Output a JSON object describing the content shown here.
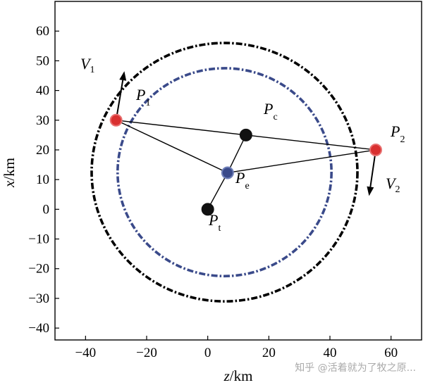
{
  "axes": {
    "xlabel_var": "z",
    "xlabel_unit": "/km",
    "ylabel_var": "x",
    "ylabel_unit": "/km",
    "xlim": [
      -50,
      70
    ],
    "ylim": [
      -44,
      70
    ],
    "xticks": [
      -40,
      -20,
      0,
      20,
      40,
      60
    ],
    "yticks": [
      -40,
      -30,
      -20,
      -10,
      0,
      10,
      20,
      30,
      40,
      50,
      60
    ],
    "xtick_labels": [
      "−40",
      "−20",
      "0",
      "20",
      "40",
      "60"
    ],
    "ytick_labels": [
      "−40",
      "−30",
      "−20",
      "−10",
      "0",
      "10",
      "20",
      "30",
      "40",
      "50",
      "60"
    ]
  },
  "circles": [
    {
      "name": "outer-circle",
      "cx": 5.5,
      "cy": 12.5,
      "r": 43.5,
      "color": "#000000",
      "dash": "dash-dot"
    },
    {
      "name": "inner-circle",
      "cx": 5.5,
      "cy": 12.5,
      "r": 35,
      "color": "#3a4a8a",
      "dash": "dash-dot"
    }
  ],
  "points": [
    {
      "id": "P1",
      "main": "P",
      "sub": "1",
      "z": -30,
      "x": 30,
      "color": "#d93030",
      "ring": "#e87070"
    },
    {
      "id": "P2",
      "main": "P",
      "sub": "2",
      "z": 55,
      "x": 20,
      "color": "#d93030",
      "ring": "#e87070"
    },
    {
      "id": "Pc",
      "main": "P",
      "sub": "c",
      "z": 12.5,
      "x": 25,
      "color": "#111111",
      "ring": "#111111"
    },
    {
      "id": "Pe",
      "main": "P",
      "sub": "e",
      "z": 6.5,
      "x": 12.3,
      "color": "#3a4a8a",
      "ring": "#6f7fb8"
    },
    {
      "id": "Pt",
      "main": "P",
      "sub": "t",
      "z": 0,
      "x": 0,
      "color": "#111111",
      "ring": "#111111"
    }
  ],
  "segments": [
    [
      "P1",
      "P2"
    ],
    [
      "P1",
      "Pe"
    ],
    [
      "Pe",
      "P2"
    ],
    [
      "Pe",
      "Pc"
    ],
    [
      "Pe",
      "Pt"
    ]
  ],
  "velocities": [
    {
      "id": "V1",
      "main": "V",
      "sub": "1",
      "from": [
        -30,
        30
      ],
      "to": [
        -27.3,
        46.5
      ]
    },
    {
      "id": "V2",
      "main": "V",
      "sub": "2",
      "from": [
        55,
        20
      ],
      "to": [
        52.8,
        4.5
      ]
    }
  ],
  "watermark": "知乎 @活着就为了牧之原..."
}
